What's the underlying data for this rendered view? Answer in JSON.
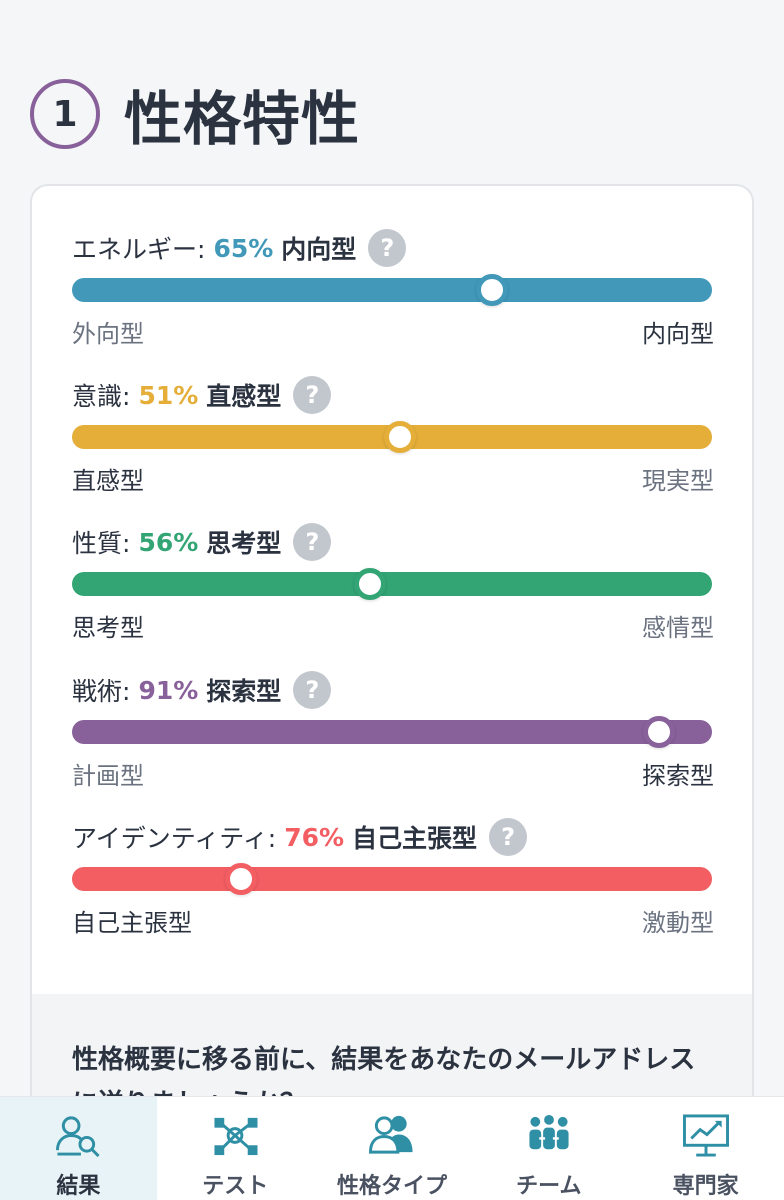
{
  "section": {
    "number": "1",
    "title": "性格特性"
  },
  "traits": [
    {
      "name": "エネルギー:",
      "percent": "65%",
      "type": "内向型",
      "left": "外向型",
      "right": "内向型",
      "position": 0.656,
      "color": "#4198b9",
      "active_side": "right"
    },
    {
      "name": "意識:",
      "percent": "51%",
      "type": "直感型",
      "left": "直感型",
      "right": "現実型",
      "position": 0.512,
      "color": "#e4ae39",
      "active_side": "left"
    },
    {
      "name": "性質:",
      "percent": "56%",
      "type": "思考型",
      "left": "思考型",
      "right": "感情型",
      "position": 0.466,
      "color": "#33a474",
      "active_side": "left"
    },
    {
      "name": "戦術:",
      "percent": "91%",
      "type": "探索型",
      "left": "計画型",
      "right": "探索型",
      "position": 0.917,
      "color": "#88619a",
      "active_side": "right"
    },
    {
      "name": "アイデンティティ:",
      "percent": "76%",
      "type": "自己主張型",
      "left": "自己主張型",
      "right": "激動型",
      "position": 0.264,
      "color": "#f25e62",
      "active_side": "left"
    }
  ],
  "help_glyph": "?",
  "prompt": {
    "text": "性格概要に移る前に、結果をあなたのメールアドレスに送りましょうか？"
  },
  "nav": [
    {
      "label": "結果",
      "icon": "results-icon",
      "active": true
    },
    {
      "label": "テスト",
      "icon": "test-icon",
      "active": false
    },
    {
      "label": "性格タイプ",
      "icon": "personality-types-icon",
      "active": false
    },
    {
      "label": "チーム",
      "icon": "team-icon",
      "active": false
    },
    {
      "label": "専門家",
      "icon": "professional-icon",
      "active": false
    }
  ],
  "nav_icon_color": "#2f8fa5"
}
